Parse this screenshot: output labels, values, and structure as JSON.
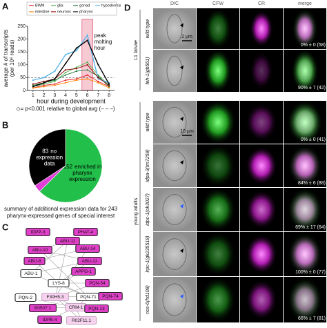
{
  "panels": [
    "A",
    "B",
    "C",
    "D"
  ],
  "chart_data": [
    {
      "type": "line",
      "x": [
        1,
        2,
        3,
        4,
        5,
        6,
        7,
        8
      ],
      "xlim": [
        0.5,
        8.5
      ],
      "xticks": [
        1,
        2,
        3,
        4,
        5,
        6,
        7,
        8
      ],
      "ylim": [
        0,
        250
      ],
      "yticks": [
        0,
        50,
        100,
        150,
        200,
        250
      ],
      "ylabel_lines": [
        "average # of transcripts",
        "(per 10⁶ reads)"
      ],
      "xlabel": "hour during development",
      "highlight_x": [
        5.5,
        6.5
      ],
      "annotation_lines": [
        "peak",
        "molting",
        "hour"
      ],
      "reference_y": 50,
      "footnote": "◇= p<0.001 relative to global avg (– – –)",
      "series": [
        {
          "name": "BWM",
          "color": "#e41a1c",
          "values": [
            10,
            20,
            25,
            40,
            45,
            60,
            35,
            15
          ]
        },
        {
          "name": "glia",
          "color": "#4daf4a",
          "values": [
            15,
            25,
            35,
            70,
            90,
            110,
            60,
            20
          ]
        },
        {
          "name": "gonad",
          "color": "#1b7837",
          "values": [
            20,
            30,
            40,
            60,
            75,
            80,
            55,
            15
          ]
        },
        {
          "name": "hypodermis",
          "color": "#56b4e9",
          "values": [
            40,
            50,
            75,
            140,
            155,
            215,
            45,
            30
          ]
        },
        {
          "name": "intestine",
          "color": "#ff7f00",
          "values": [
            10,
            15,
            20,
            30,
            40,
            45,
            30,
            10
          ]
        },
        {
          "name": "neurons",
          "color": "#8b0000",
          "values": [
            25,
            35,
            45,
            80,
            85,
            100,
            50,
            20
          ]
        },
        {
          "name": "pharynx",
          "color": "#000000",
          "values": [
            15,
            30,
            45,
            105,
            165,
            195,
            100,
            25
          ]
        }
      ]
    },
    {
      "type": "pie",
      "values": [
        152,
        8,
        83
      ],
      "colors": [
        "#22c04a",
        "#e040d8",
        "#000000"
      ],
      "label_lines": [
        [
          "enriched in",
          "pharynx",
          "expression"
        ],
        null,
        [
          "no",
          "expression",
          "data"
        ]
      ],
      "caption_lines": [
        "summary of additional expression data for 243",
        "pharynx-expressed genes of special interest"
      ]
    }
  ],
  "network": {
    "nodes": [
      {
        "label": "IDPP-3",
        "fill": "#e040c8"
      },
      {
        "label": "PHAT-4",
        "fill": "#e040c8"
      },
      {
        "label": "ABU-11",
        "fill": "#e040c8"
      },
      {
        "label": "ABU-10",
        "fill": "#e040c8"
      },
      {
        "label": "ABU-14",
        "fill": "#e040c8"
      },
      {
        "label": "ABU-8",
        "fill": "#e040c8"
      },
      {
        "label": "ABU-12",
        "fill": "#e040c8"
      },
      {
        "label": "APPG-1",
        "fill": "#e040c8"
      },
      {
        "label": "ABU-1",
        "fill": "#ffffff"
      },
      {
        "label": "LYS-8",
        "fill": "#ffffff"
      },
      {
        "label": "PQN-54",
        "fill": "#e040c8"
      },
      {
        "label": "PQN-2",
        "fill": "#ffffff"
      },
      {
        "label": "F30H5.3",
        "fill": "#f6d2ef"
      },
      {
        "label": "PQN-71",
        "fill": "#ffffff"
      },
      {
        "label": "PQN-74",
        "fill": "#e040c8"
      },
      {
        "label": "CRM-1",
        "fill": "#f6d2ef"
      },
      {
        "label": "B0507.1",
        "fill": "#e040c8"
      },
      {
        "label": "PQN-13",
        "fill": "#e040c8"
      },
      {
        "label": "IDPB-4",
        "fill": "#e040c8"
      },
      {
        "label": "R02F11.1",
        "fill": "#f6d2ef"
      }
    ],
    "edges": [
      [
        2,
        3
      ],
      [
        2,
        4
      ],
      [
        2,
        8
      ],
      [
        2,
        9
      ],
      [
        3,
        6
      ],
      [
        4,
        5
      ],
      [
        5,
        9
      ],
      [
        6,
        9
      ],
      [
        8,
        6
      ],
      [
        9,
        10
      ],
      [
        9,
        12
      ],
      [
        9,
        13
      ],
      [
        8,
        13
      ],
      [
        12,
        15
      ],
      [
        13,
        15
      ],
      [
        11,
        15
      ],
      [
        12,
        14
      ],
      [
        16,
        15
      ],
      [
        15,
        17
      ],
      [
        15,
        18
      ],
      [
        15,
        19
      ],
      [
        12,
        19
      ],
      [
        10,
        12
      ],
      [
        7,
        9
      ],
      [
        3,
        13
      ],
      [
        4,
        12
      ]
    ]
  },
  "micrographs": {
    "columns": [
      "DIC",
      "CFW",
      "CR",
      "merge"
    ],
    "groups": [
      {
        "label": "L1 larvae",
        "rows": [
          {
            "genotype": "wild type",
            "result": "0% ± 0 (58)",
            "scale_bar": "2 µm"
          },
          {
            "genotype": "feh-1(gb561)",
            "result": "90% ± 7 (42)"
          }
        ]
      },
      {
        "label": "young adults",
        "rows": [
          {
            "genotype": "wild type",
            "result": "0% ± 0 (41)",
            "scale_bar": "10 µm"
          },
          {
            "genotype": "idpa-3(tm7258)",
            "result": "84% ± 6 (88)"
          },
          {
            "genotype": "idpc-1(ok3027)",
            "result": "69% ± 17 (64)"
          },
          {
            "genotype": "lrpc-1(gk235518)",
            "result": "100% ± 0 (77)"
          },
          {
            "genotype": "nos-6(hd108)",
            "result": "66% ± 7 (81)"
          }
        ]
      }
    ]
  }
}
